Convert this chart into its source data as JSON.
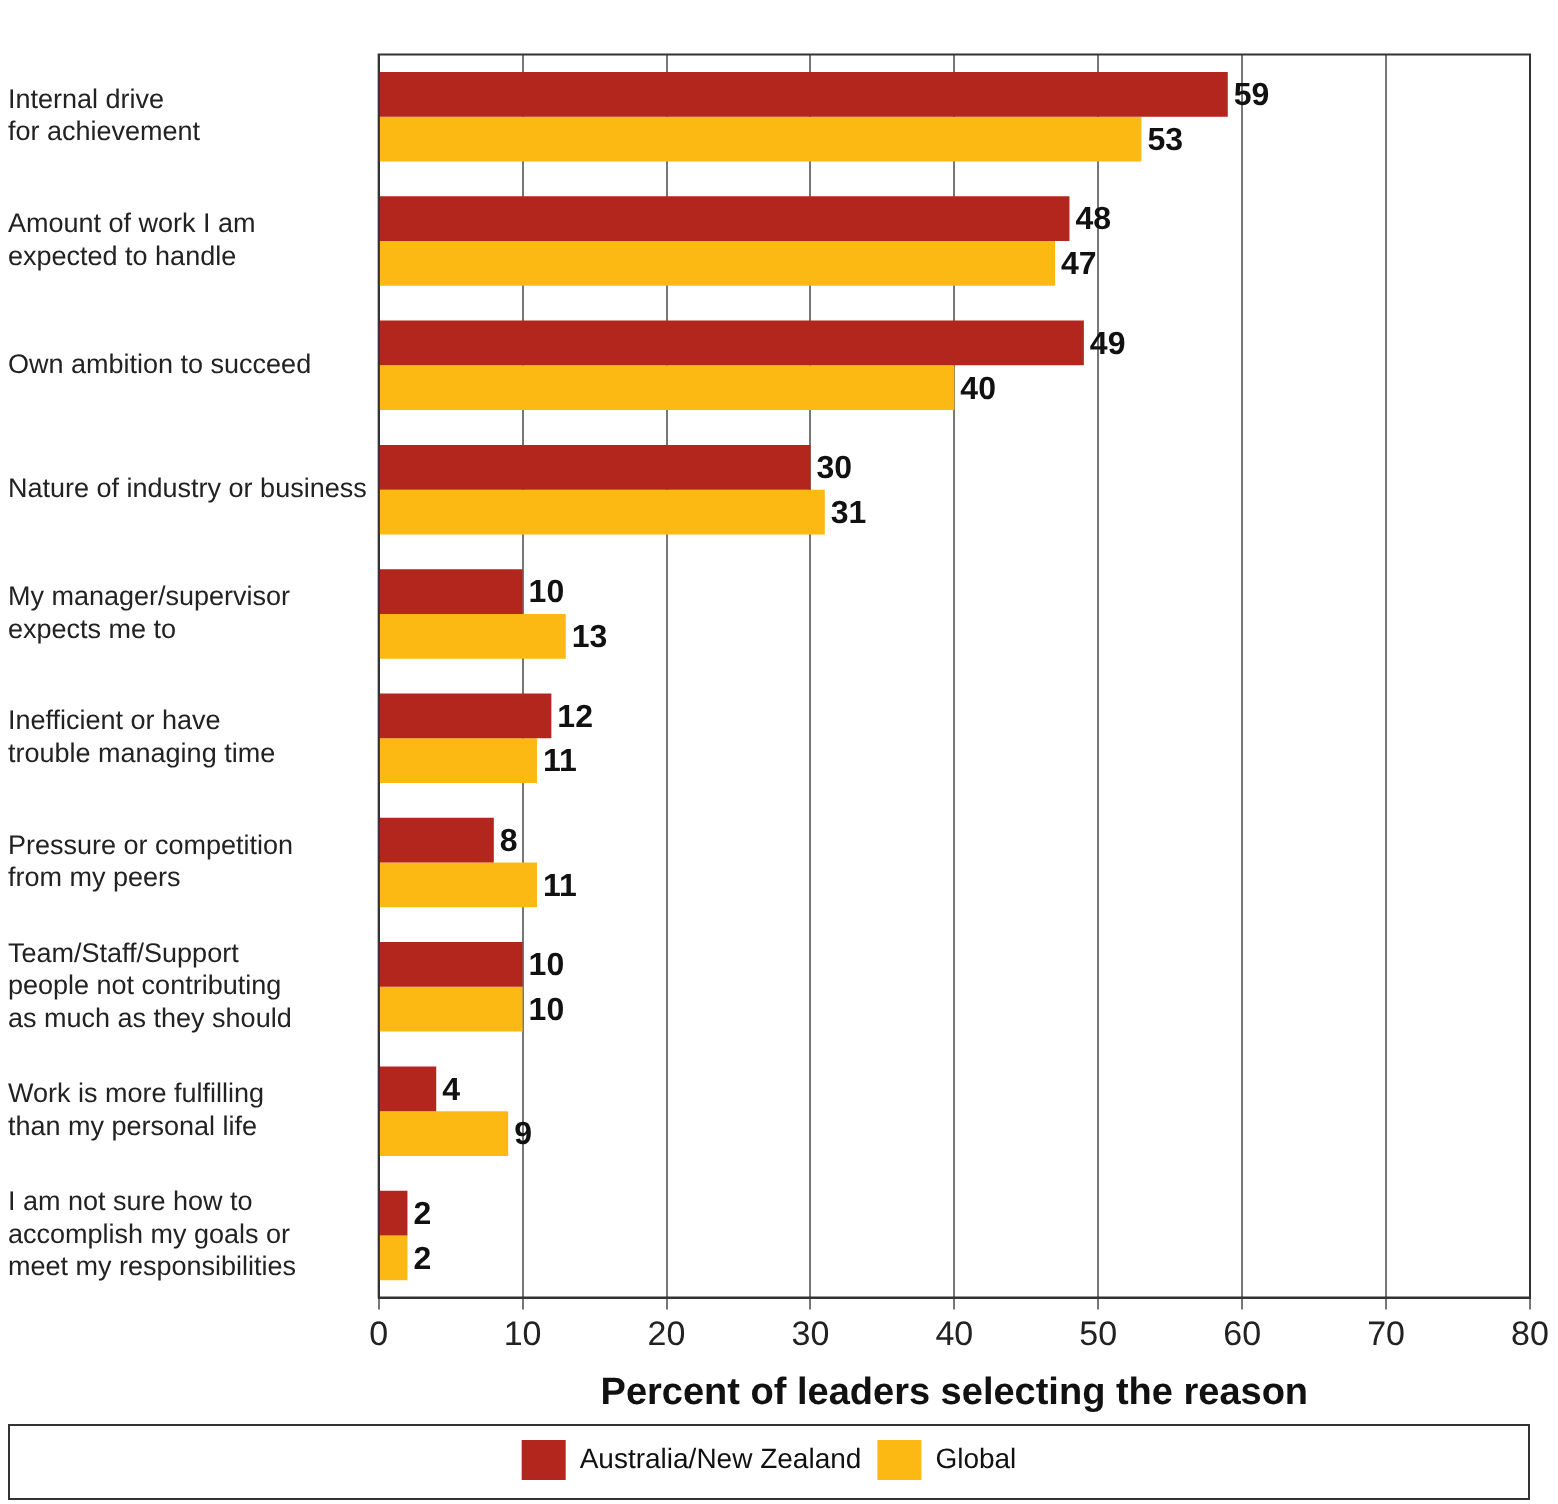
{
  "chart_data": {
    "type": "bar",
    "orientation": "horizontal",
    "xlabel": "Percent of leaders selecting the reason",
    "categories": [
      "Internal drive\nfor achievement",
      "Amount of work I am\nexpected to handle",
      "Own ambition to succeed",
      "Nature of industry or business",
      "My manager/supervisor\nexpects me to",
      "Inefficient or have\ntrouble managing time",
      "Pressure or competition\nfrom my peers",
      "Team/Staff/Support\npeople not contributing\nas much as they should",
      "Work is more fulfilling\nthan my personal life",
      "I am not sure how to\naccomplish my goals or\nmeet my responsibilities"
    ],
    "series": [
      {
        "name": "Australia/New Zealand",
        "color": "#b3261e",
        "values": [
          59,
          48,
          49,
          30,
          10,
          12,
          8,
          10,
          4,
          2
        ]
      },
      {
        "name": "Global",
        "color": "#fdb913",
        "values": [
          53,
          47,
          40,
          31,
          13,
          11,
          11,
          10,
          9,
          2
        ]
      }
    ],
    "xlim": [
      0,
      80
    ],
    "xticks": [
      0,
      10,
      20,
      30,
      40,
      50,
      60,
      70,
      80
    ],
    "grid": "x",
    "legend": "bottom",
    "data_labels": true
  }
}
